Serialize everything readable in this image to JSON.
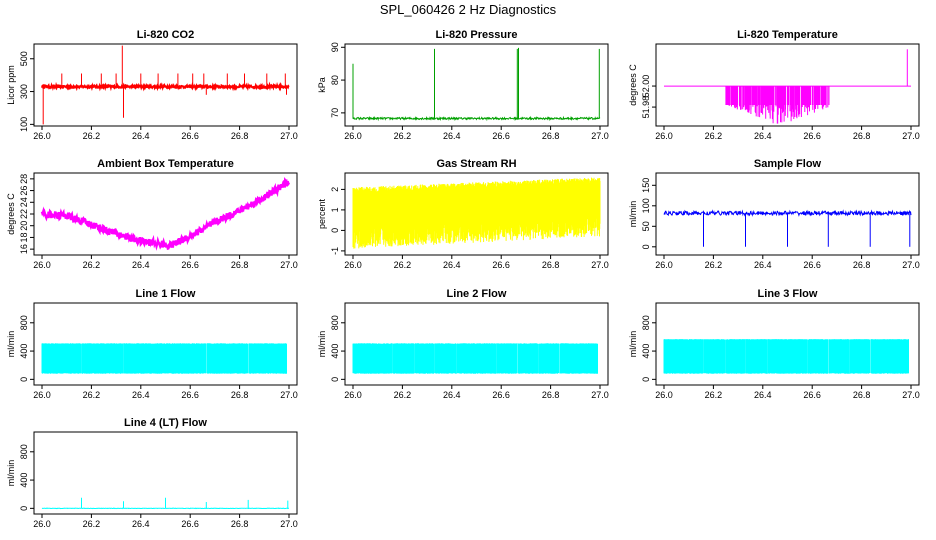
{
  "figure_title": "SPL_060426  2 Hz Diagnostics",
  "chart_data": [
    {
      "id": "co2",
      "type": "line",
      "title": "Li-820 CO2",
      "ylabel": "Licor ppm",
      "color": "#ff0000",
      "xlim": [
        26.0,
        27.0
      ],
      "ylim": [
        90,
        590
      ],
      "xticks": [
        "26.0",
        "26.2",
        "26.4",
        "26.6",
        "26.8",
        "27.0"
      ],
      "yticks": [
        100,
        300,
        500
      ],
      "baseline": 330,
      "noise": 8,
      "spikes": [
        [
          26.005,
          100
        ],
        [
          26.08,
          410
        ],
        [
          26.16,
          410
        ],
        [
          26.24,
          410
        ],
        [
          26.3,
          410
        ],
        [
          26.325,
          580
        ],
        [
          26.33,
          140
        ],
        [
          26.4,
          410
        ],
        [
          26.47,
          410
        ],
        [
          26.55,
          410
        ],
        [
          26.61,
          410
        ],
        [
          26.655,
          410
        ],
        [
          26.665,
          280
        ],
        [
          26.75,
          410
        ],
        [
          26.82,
          410
        ],
        [
          26.91,
          410
        ],
        [
          26.985,
          410
        ],
        [
          26.99,
          280
        ]
      ]
    },
    {
      "id": "pressure",
      "type": "line",
      "title": "Li-820 Pressure",
      "ylabel": "kPa",
      "color": "#00a000",
      "xlim": [
        26.0,
        27.0
      ],
      "ylim": [
        66,
        91
      ],
      "xticks": [
        "26.0",
        "26.2",
        "26.4",
        "26.6",
        "26.8",
        "27.0"
      ],
      "yticks": [
        70,
        80,
        90
      ],
      "baseline": 68.3,
      "noise": 0.3,
      "spikes": [
        [
          26.0,
          85
        ],
        [
          26.33,
          89.5
        ],
        [
          26.665,
          89.5
        ],
        [
          26.67,
          89.8
        ],
        [
          26.997,
          89.5
        ]
      ]
    },
    {
      "id": "temperature",
      "type": "line",
      "title": "Li-820 Temperature",
      "ylabel": "degrees C",
      "color": "#ff00ff",
      "xlim": [
        26.0,
        27.0
      ],
      "ylim": [
        51.962,
        52.04
      ],
      "xticks": [
        "26.0",
        "26.2",
        "26.4",
        "26.6",
        "26.8",
        "27.0"
      ],
      "yticks": [
        51.98,
        52.0
      ],
      "baseline": 52.0,
      "noise": 0,
      "spikes": [
        [
          26.985,
          52.035
        ]
      ]
    },
    {
      "id": "ambient",
      "type": "line",
      "title": "Ambient Box Temperature",
      "ylabel": "degrees C",
      "color": "#ff00ff",
      "xlim": [
        26.0,
        27.0
      ],
      "ylim": [
        15,
        29
      ],
      "xticks": [
        "26.0",
        "26.2",
        "26.4",
        "26.6",
        "26.8",
        "27.0"
      ],
      "yticks": [
        16,
        18,
        20,
        22,
        24,
        26,
        28
      ],
      "curve": [
        [
          26.0,
          22.0
        ],
        [
          26.1,
          21.7
        ],
        [
          26.2,
          20.2
        ],
        [
          26.3,
          18.6
        ],
        [
          26.4,
          17.4
        ],
        [
          26.52,
          16.6
        ],
        [
          26.6,
          18.2
        ],
        [
          26.7,
          20.6
        ],
        [
          26.8,
          22.6
        ],
        [
          26.9,
          24.8
        ],
        [
          27.0,
          27.6
        ]
      ],
      "noise": 0.6
    },
    {
      "id": "rh",
      "type": "line",
      "title": "Gas Stream RH",
      "ylabel": "percent",
      "color": "#ffff00",
      "xlim": [
        26.0,
        27.0
      ],
      "ylim": [
        -1.2,
        2.8
      ],
      "xticks": [
        "26.0",
        "26.2",
        "26.4",
        "26.6",
        "26.8",
        "27.0"
      ],
      "yticks": [
        -1,
        0,
        1,
        2
      ],
      "band": [
        [
          26.0,
          0.1,
          1.8
        ],
        [
          27.0,
          0.7,
          2.3
        ]
      ],
      "noise": 1.0
    },
    {
      "id": "sample",
      "type": "line",
      "title": "Sample Flow",
      "ylabel": "ml/min",
      "color": "#0000ff",
      "xlim": [
        26.0,
        27.0
      ],
      "ylim": [
        -20,
        180
      ],
      "xticks": [
        "26.0",
        "26.2",
        "26.4",
        "26.6",
        "26.8",
        "27.0"
      ],
      "yticks": [
        0,
        50,
        100,
        150
      ],
      "baseline": 82,
      "noise": 5,
      "spikes": [
        [
          26.16,
          0
        ],
        [
          26.33,
          0
        ],
        [
          26.5,
          0
        ],
        [
          26.665,
          0
        ],
        [
          26.835,
          0
        ],
        [
          26.995,
          0
        ]
      ]
    },
    {
      "id": "line1",
      "type": "line",
      "title": "Line 1 Flow",
      "ylabel": "ml/min",
      "color": "#00ffff",
      "xlim": [
        26.0,
        27.0
      ],
      "ylim": [
        -80,
        1080
      ],
      "xticks": [
        "26.0",
        "26.2",
        "26.4",
        "26.6",
        "26.8",
        "27.0"
      ],
      "yticks": [
        0,
        400,
        800
      ],
      "low": 80,
      "high": 500,
      "gaps": [
        26.16,
        26.33,
        26.5,
        26.665,
        26.835
      ]
    },
    {
      "id": "line2",
      "type": "line",
      "title": "Line 2 Flow",
      "ylabel": "ml/min",
      "color": "#00ffff",
      "xlim": [
        26.0,
        27.0
      ],
      "ylim": [
        -80,
        1080
      ],
      "xticks": [
        "26.0",
        "26.2",
        "26.4",
        "26.6",
        "26.8",
        "27.0"
      ],
      "yticks": [
        0,
        400,
        800
      ],
      "low": 80,
      "high": 500,
      "gaps": [
        26.16,
        26.33,
        26.5,
        26.665,
        26.835,
        26.1,
        26.25,
        26.42,
        26.58,
        26.75,
        26.9
      ]
    },
    {
      "id": "line3",
      "type": "line",
      "title": "Line 3 Flow",
      "ylabel": "ml/min",
      "color": "#00ffff",
      "xlim": [
        26.0,
        27.0
      ],
      "ylim": [
        -80,
        1080
      ],
      "xticks": [
        "26.0",
        "26.2",
        "26.4",
        "26.6",
        "26.8",
        "27.0"
      ],
      "yticks": [
        0,
        400,
        800
      ],
      "low": 80,
      "high": 560,
      "gaps": [
        26.16,
        26.33,
        26.5,
        26.665,
        26.835,
        26.1,
        26.25,
        26.42,
        26.58,
        26.75,
        26.9
      ]
    },
    {
      "id": "line4",
      "type": "line",
      "title": "Line 4 (LT) Flow",
      "ylabel": "ml/min",
      "color": "#00ffff",
      "xlim": [
        26.0,
        27.0
      ],
      "ylim": [
        -80,
        1080
      ],
      "xticks": [
        "26.0",
        "26.2",
        "26.4",
        "26.6",
        "26.8",
        "27.0"
      ],
      "yticks": [
        0,
        400,
        800
      ],
      "baseline": 0,
      "noise": 3,
      "spikes": [
        [
          26.16,
          150
        ],
        [
          26.33,
          100
        ],
        [
          26.5,
          150
        ],
        [
          26.665,
          90
        ],
        [
          26.835,
          120
        ],
        [
          26.995,
          110
        ]
      ]
    }
  ]
}
